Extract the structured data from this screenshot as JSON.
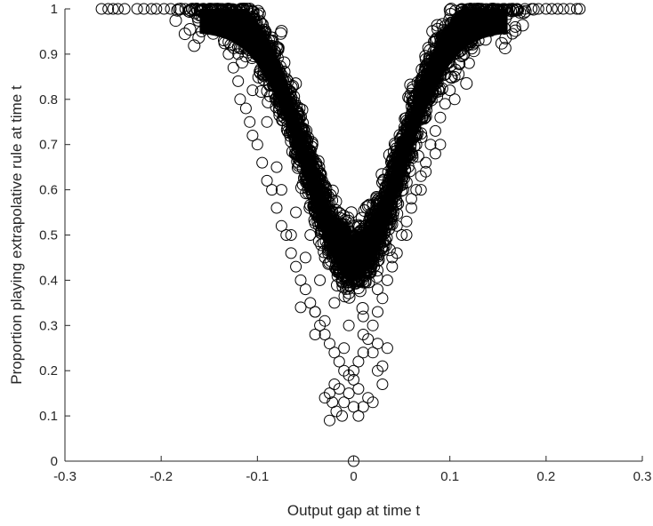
{
  "chart_data": {
    "type": "scatter",
    "title": "",
    "xlabel": "Output gap at time t",
    "ylabel": "Proportion playing extrapolative rule at time t",
    "xlim": [
      -0.3,
      0.3
    ],
    "ylim": [
      0,
      1
    ],
    "xticks": [
      -0.3,
      -0.2,
      -0.1,
      0,
      0.1,
      0.2,
      0.3
    ],
    "xtick_labels": [
      "-0.3",
      "-0.2",
      "-0.1",
      "0",
      "0.1",
      "0.2",
      "0.3"
    ],
    "yticks": [
      0,
      0.1,
      0.2,
      0.3,
      0.4,
      0.5,
      0.6,
      0.7,
      0.8,
      0.9,
      1
    ],
    "ytick_labels": [
      "0",
      "0.1",
      "0.2",
      "0.3",
      "0.4",
      "0.5",
      "0.6",
      "0.7",
      "0.8",
      "0.9",
      "1"
    ],
    "grid": false,
    "marker": "open-circle",
    "marker_color": "#000000",
    "series": [
      {
        "points": [
          [
            -0.262,
            1.0
          ],
          [
            -0.255,
            1.0
          ],
          [
            -0.25,
            1.0
          ],
          [
            -0.245,
            1.0
          ],
          [
            -0.238,
            1.0
          ],
          [
            -0.225,
            1.0
          ],
          [
            -0.218,
            1.0
          ],
          [
            -0.21,
            1.0
          ],
          [
            -0.205,
            1.0
          ],
          [
            -0.197,
            1.0
          ],
          [
            -0.19,
            1.0
          ],
          [
            -0.182,
            1.0
          ],
          [
            -0.175,
            1.0
          ],
          [
            -0.168,
            1.0
          ],
          [
            -0.16,
            0.999
          ],
          [
            -0.152,
            0.998
          ],
          [
            -0.145,
            0.997
          ],
          [
            -0.138,
            0.996
          ],
          [
            -0.165,
            0.99
          ],
          [
            -0.16,
            0.985
          ],
          [
            -0.158,
            0.95
          ],
          [
            -0.148,
            0.975
          ],
          [
            -0.14,
            0.96
          ],
          [
            -0.135,
            0.93
          ],
          [
            -0.13,
            0.9
          ],
          [
            -0.125,
            0.87
          ],
          [
            -0.12,
            0.84
          ],
          [
            -0.118,
            0.8
          ],
          [
            -0.112,
            0.78
          ],
          [
            -0.108,
            0.75
          ],
          [
            -0.105,
            0.72
          ],
          [
            -0.1,
            0.7
          ],
          [
            -0.095,
            0.66
          ],
          [
            -0.09,
            0.62
          ],
          [
            -0.085,
            0.6
          ],
          [
            -0.08,
            0.56
          ],
          [
            -0.075,
            0.52
          ],
          [
            -0.07,
            0.5
          ],
          [
            -0.065,
            0.46
          ],
          [
            -0.06,
            0.43
          ],
          [
            -0.055,
            0.4
          ],
          [
            -0.05,
            0.38
          ],
          [
            -0.045,
            0.35
          ],
          [
            -0.04,
            0.33
          ],
          [
            -0.035,
            0.3
          ],
          [
            -0.03,
            0.28
          ],
          [
            -0.025,
            0.26
          ],
          [
            -0.02,
            0.24
          ],
          [
            -0.015,
            0.22
          ],
          [
            -0.01,
            0.2
          ],
          [
            -0.005,
            0.19
          ],
          [
            0.0,
            0.18
          ],
          [
            -0.02,
            0.17
          ],
          [
            -0.015,
            0.16
          ],
          [
            -0.025,
            0.15
          ],
          [
            -0.005,
            0.15
          ],
          [
            0.005,
            0.16
          ],
          [
            0.015,
            0.14
          ],
          [
            -0.03,
            0.14
          ],
          [
            -0.022,
            0.13
          ],
          [
            -0.01,
            0.13
          ],
          [
            0.0,
            0.12
          ],
          [
            0.01,
            0.12
          ],
          [
            -0.018,
            0.11
          ],
          [
            -0.012,
            0.1
          ],
          [
            0.005,
            0.1
          ],
          [
            -0.025,
            0.09
          ],
          [
            0.02,
            0.13
          ],
          [
            0.03,
            0.17
          ],
          [
            0.025,
            0.2
          ],
          [
            0.0,
            0.0
          ],
          [
            0.005,
            0.22
          ],
          [
            0.01,
            0.24
          ],
          [
            0.015,
            0.27
          ],
          [
            0.02,
            0.3
          ],
          [
            0.025,
            0.33
          ],
          [
            0.03,
            0.36
          ],
          [
            0.035,
            0.4
          ],
          [
            0.04,
            0.43
          ],
          [
            0.045,
            0.46
          ],
          [
            0.05,
            0.5
          ],
          [
            0.055,
            0.53
          ],
          [
            0.06,
            0.56
          ],
          [
            0.065,
            0.6
          ],
          [
            0.07,
            0.63
          ],
          [
            0.075,
            0.66
          ],
          [
            0.08,
            0.7
          ],
          [
            0.085,
            0.73
          ],
          [
            0.09,
            0.76
          ],
          [
            0.095,
            0.79
          ],
          [
            0.1,
            0.82
          ],
          [
            0.105,
            0.85
          ],
          [
            0.11,
            0.88
          ],
          [
            0.115,
            0.9
          ],
          [
            0.12,
            0.92
          ],
          [
            0.125,
            0.94
          ],
          [
            0.13,
            0.96
          ],
          [
            0.135,
            0.975
          ],
          [
            0.14,
            0.985
          ],
          [
            0.145,
            0.99
          ],
          [
            0.15,
            0.995
          ],
          [
            0.155,
            1.0
          ],
          [
            0.162,
            1.0
          ],
          [
            0.17,
            1.0
          ],
          [
            0.178,
            1.0
          ],
          [
            0.185,
            1.0
          ],
          [
            0.192,
            1.0
          ],
          [
            0.2,
            1.0
          ],
          [
            0.206,
            1.0
          ],
          [
            0.212,
            1.0
          ],
          [
            0.218,
            1.0
          ],
          [
            0.225,
            1.0
          ],
          [
            0.232,
            1.0
          ],
          [
            0.235,
            1.0
          ],
          [
            0.168,
            0.96
          ],
          [
            0.165,
            0.945
          ],
          [
            -0.075,
            0.6
          ],
          [
            -0.06,
            0.55
          ],
          [
            -0.045,
            0.5
          ],
          [
            -0.03,
            0.45
          ],
          [
            -0.015,
            0.42
          ],
          [
            0.0,
            0.4
          ],
          [
            0.015,
            0.42
          ],
          [
            0.03,
            0.47
          ],
          [
            0.045,
            0.52
          ],
          [
            0.06,
            0.58
          ],
          [
            0.075,
            0.64
          ],
          [
            0.09,
            0.7
          ],
          [
            -0.09,
            0.75
          ],
          [
            -0.105,
            0.82
          ],
          [
            -0.12,
            0.9
          ],
          [
            0.105,
            0.8
          ],
          [
            0.12,
            0.88
          ],
          [
            0.13,
            0.93
          ],
          [
            -0.05,
            0.45
          ],
          [
            -0.035,
            0.4
          ],
          [
            -0.02,
            0.35
          ],
          [
            -0.005,
            0.3
          ],
          [
            0.01,
            0.32
          ],
          [
            0.025,
            0.38
          ],
          [
            0.04,
            0.45
          ],
          [
            0.055,
            0.5
          ],
          [
            -0.065,
            0.5
          ],
          [
            -0.08,
            0.65
          ],
          [
            0.07,
            0.6
          ],
          [
            0.085,
            0.68
          ],
          [
            -0.01,
            0.25
          ],
          [
            0.0,
            0.2
          ],
          [
            0.01,
            0.28
          ],
          [
            -0.04,
            0.28
          ],
          [
            0.035,
            0.25
          ],
          [
            0.03,
            0.21
          ],
          [
            -0.04,
            0.33
          ],
          [
            -0.03,
            0.31
          ],
          [
            -0.055,
            0.34
          ],
          [
            0.02,
            0.24
          ],
          [
            0.025,
            0.26
          ]
        ]
      }
    ]
  }
}
